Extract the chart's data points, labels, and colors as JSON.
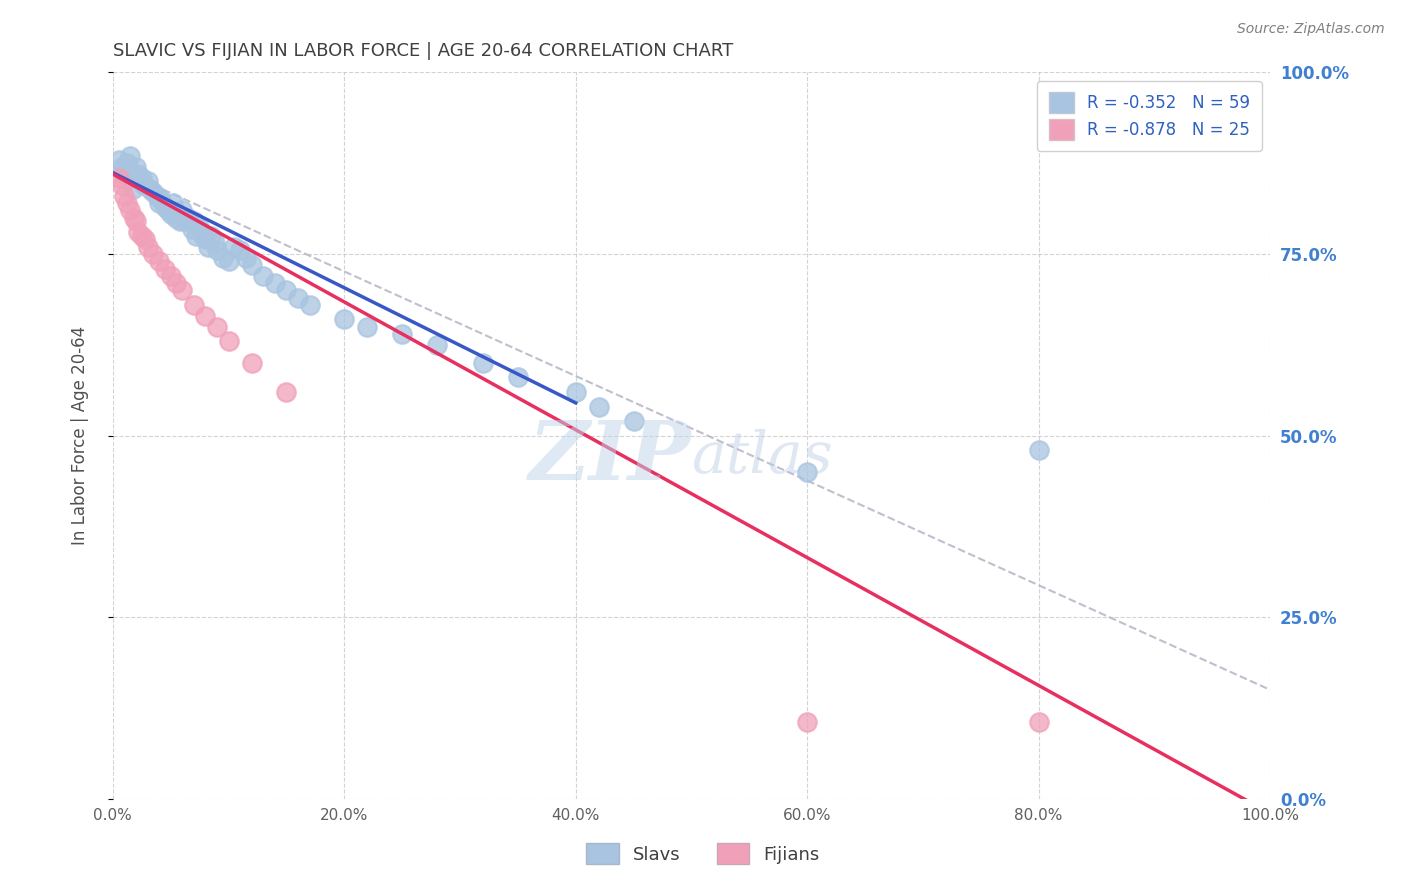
{
  "title": "SLAVIC VS FIJIAN IN LABOR FORCE | AGE 20-64 CORRELATION CHART",
  "xlabel": "",
  "ylabel": "In Labor Force | Age 20-64",
  "source_text": "Source: ZipAtlas.com",
  "watermark_zip": "ZIP",
  "watermark_atlas": "atlas",
  "xlim": [
    0.0,
    1.0
  ],
  "ylim": [
    0.0,
    1.0
  ],
  "x_ticks": [
    0.0,
    0.2,
    0.4,
    0.6,
    0.8,
    1.0
  ],
  "x_tick_labels": [
    "0.0%",
    "20.0%",
    "40.0%",
    "60.0%",
    "80.0%",
    "100.0%"
  ],
  "y_ticks_right": [
    0.0,
    0.25,
    0.5,
    0.75,
    1.0
  ],
  "y_tick_labels_right": [
    "0.0%",
    "25.0%",
    "50.0%",
    "75.0%",
    "100.0%"
  ],
  "slavs_color": "#a8c4e0",
  "fijians_color": "#f0a0b8",
  "slavs_line_color": "#3858c8",
  "fijians_line_color": "#e83060",
  "dashed_line_color": "#b8b8c8",
  "legend_R_slavs": "R = -0.352",
  "legend_N_slavs": "N = 59",
  "legend_R_fijians": "R = -0.878",
  "legend_N_fijians": "N = 25",
  "background_color": "#ffffff",
  "grid_color": "#c8c8c8",
  "title_color": "#404040",
  "axis_label_color": "#505050",
  "right_axis_color": "#4080d0",
  "slavs_x": [
    0.005,
    0.008,
    0.01,
    0.012,
    0.013,
    0.015,
    0.017,
    0.018,
    0.02,
    0.022,
    0.025,
    0.027,
    0.03,
    0.032,
    0.035,
    0.038,
    0.04,
    0.042,
    0.045,
    0.048,
    0.05,
    0.052,
    0.055,
    0.058,
    0.06,
    0.062,
    0.065,
    0.068,
    0.07,
    0.072,
    0.075,
    0.078,
    0.08,
    0.082,
    0.085,
    0.088,
    0.09,
    0.095,
    0.1,
    0.105,
    0.11,
    0.115,
    0.12,
    0.13,
    0.14,
    0.15,
    0.16,
    0.17,
    0.2,
    0.22,
    0.25,
    0.28,
    0.32,
    0.35,
    0.4,
    0.42,
    0.45,
    0.6,
    0.8
  ],
  "slavs_y": [
    0.88,
    0.87,
    0.86,
    0.875,
    0.865,
    0.885,
    0.84,
    0.855,
    0.87,
    0.86,
    0.855,
    0.845,
    0.85,
    0.84,
    0.835,
    0.83,
    0.82,
    0.825,
    0.815,
    0.81,
    0.805,
    0.82,
    0.8,
    0.795,
    0.81,
    0.795,
    0.8,
    0.785,
    0.795,
    0.775,
    0.785,
    0.775,
    0.77,
    0.76,
    0.775,
    0.765,
    0.755,
    0.745,
    0.74,
    0.76,
    0.755,
    0.745,
    0.735,
    0.72,
    0.71,
    0.7,
    0.69,
    0.68,
    0.66,
    0.65,
    0.64,
    0.625,
    0.6,
    0.58,
    0.56,
    0.54,
    0.52,
    0.45,
    0.48
  ],
  "fijians_x": [
    0.005,
    0.008,
    0.01,
    0.012,
    0.015,
    0.018,
    0.02,
    0.022,
    0.025,
    0.028,
    0.03,
    0.035,
    0.04,
    0.045,
    0.05,
    0.055,
    0.06,
    0.07,
    0.08,
    0.09,
    0.1,
    0.12,
    0.15,
    0.6,
    0.8
  ],
  "fijians_y": [
    0.855,
    0.845,
    0.83,
    0.82,
    0.81,
    0.8,
    0.795,
    0.78,
    0.775,
    0.77,
    0.76,
    0.75,
    0.74,
    0.73,
    0.72,
    0.71,
    0.7,
    0.68,
    0.665,
    0.65,
    0.63,
    0.6,
    0.56,
    0.105,
    0.105
  ],
  "slavs_line_x": [
    0.0,
    0.4
  ],
  "slavs_line_y": [
    0.862,
    0.545
  ],
  "fijians_line_x": [
    0.0,
    1.0
  ],
  "fijians_line_y": [
    0.86,
    -0.02
  ],
  "dashed_line_x": [
    0.0,
    1.0
  ],
  "dashed_line_y": [
    0.87,
    0.15
  ]
}
